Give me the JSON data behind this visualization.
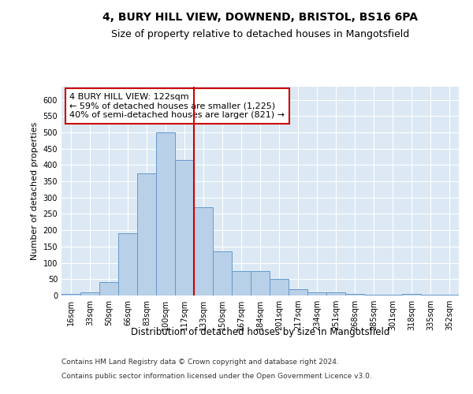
{
  "title1": "4, BURY HILL VIEW, DOWNEND, BRISTOL, BS16 6PA",
  "title2": "Size of property relative to detached houses in Mangotsfield",
  "xlabel": "Distribution of detached houses by size in Mangotsfield",
  "ylabel": "Number of detached properties",
  "categories": [
    "16sqm",
    "33sqm",
    "50sqm",
    "66sqm",
    "83sqm",
    "100sqm",
    "117sqm",
    "133sqm",
    "150sqm",
    "167sqm",
    "184sqm",
    "201sqm",
    "217sqm",
    "234sqm",
    "251sqm",
    "268sqm",
    "285sqm",
    "301sqm",
    "318sqm",
    "335sqm",
    "352sqm"
  ],
  "values": [
    5,
    10,
    40,
    190,
    375,
    500,
    415,
    270,
    135,
    75,
    75,
    50,
    20,
    10,
    10,
    5,
    3,
    2,
    5,
    2,
    2
  ],
  "bar_color": "#b8d0e8",
  "bar_edge_color": "#6699cc",
  "vline_x_idx": 6,
  "vline_color": "#cc0000",
  "annotation_text": "4 BURY HILL VIEW: 122sqm\n← 59% of detached houses are smaller (1,225)\n40% of semi-detached houses are larger (821) →",
  "annotation_box_color": "#ffffff",
  "annotation_box_edge": "#cc0000",
  "ylim": [
    0,
    640
  ],
  "yticks": [
    0,
    50,
    100,
    150,
    200,
    250,
    300,
    350,
    400,
    450,
    500,
    550,
    600
  ],
  "footer1": "Contains HM Land Registry data © Crown copyright and database right 2024.",
  "footer2": "Contains public sector information licensed under the Open Government Licence v3.0.",
  "bg_color": "#dce9f5",
  "fig_bg": "#ffffff",
  "title1_fontsize": 10,
  "title2_fontsize": 9,
  "xlabel_fontsize": 8.5,
  "ylabel_fontsize": 8,
  "tick_fontsize": 7,
  "annotation_fontsize": 8,
  "footer_fontsize": 6.5
}
